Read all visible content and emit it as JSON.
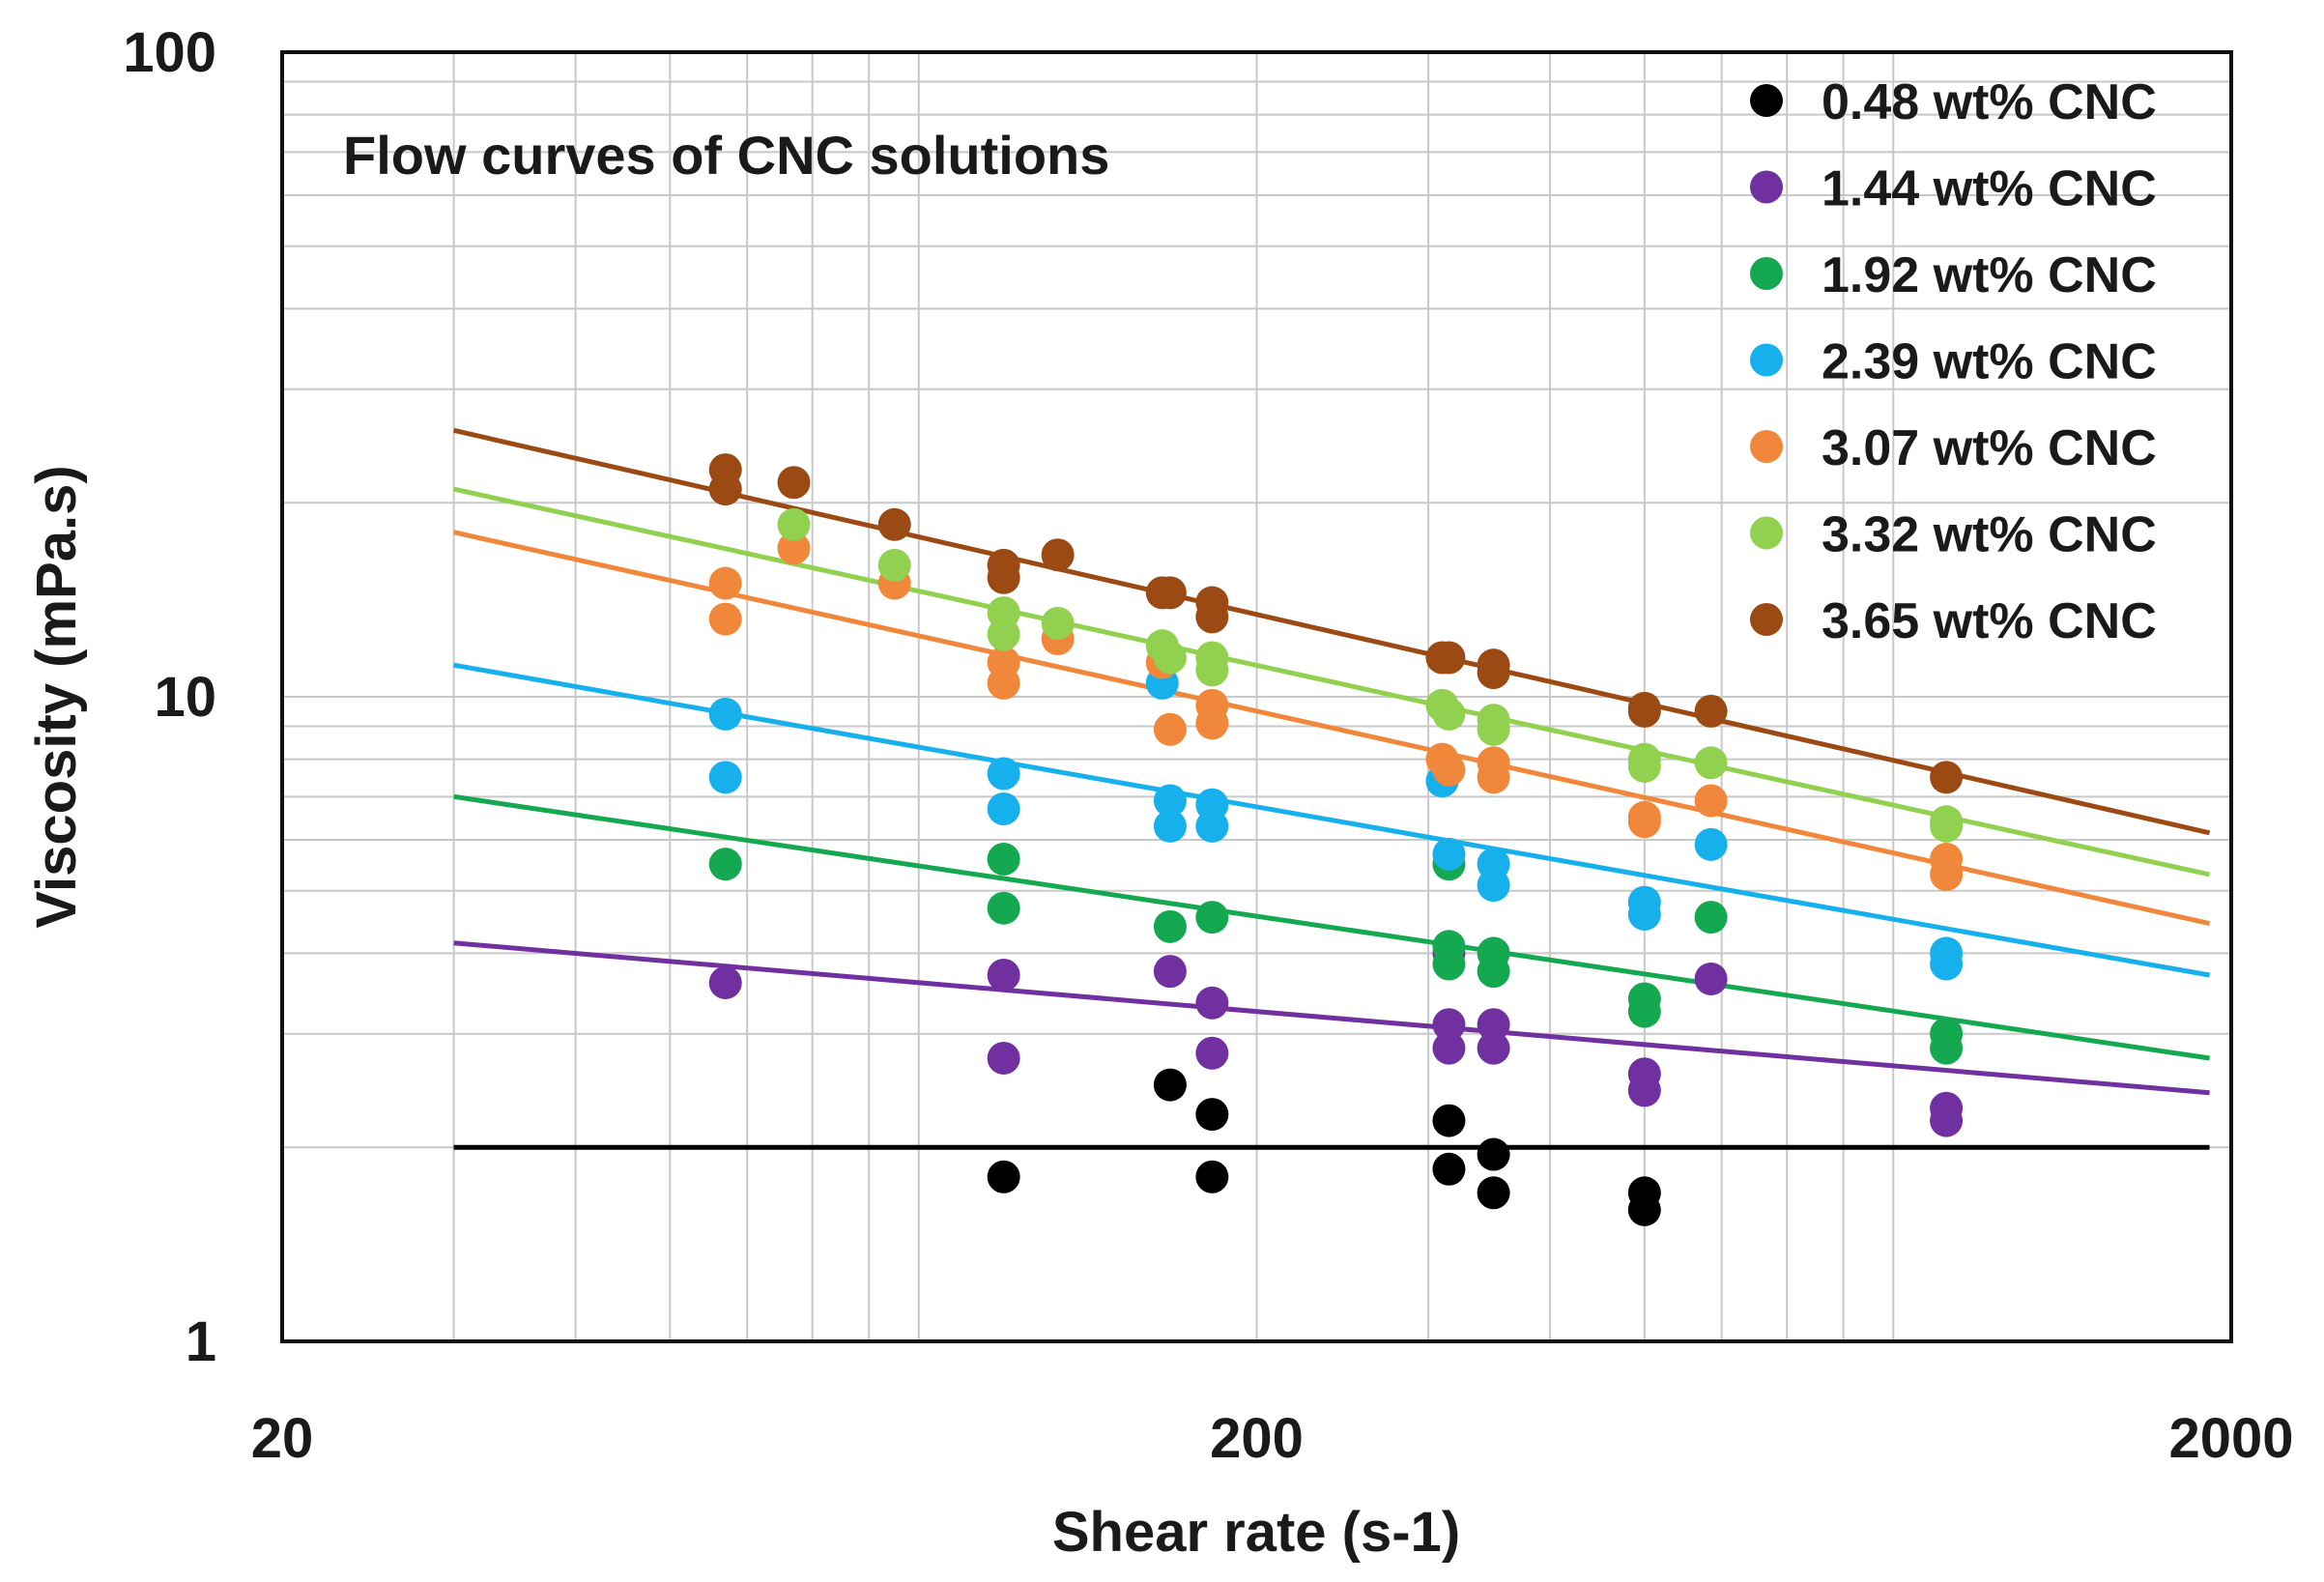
{
  "chart_data": {
    "type": "scatter",
    "title": "Flow curves of CNC solutions",
    "xlabel": "Shear rate (s-1)",
    "ylabel": "Viscosity (mPa.s)",
    "xscale": "log",
    "yscale": "log",
    "xlim": [
      20,
      2000
    ],
    "ylim": [
      1,
      100
    ],
    "xticks": [
      {
        "value": 20,
        "label": "20"
      },
      {
        "value": 200,
        "label": "200"
      },
      {
        "value": 2000,
        "label": "2000"
      }
    ],
    "yticks": [
      {
        "value": 1,
        "label": "1"
      },
      {
        "value": 10,
        "label": "10"
      },
      {
        "value": 100,
        "label": "100"
      }
    ],
    "grid": true,
    "legend_position": "top-right",
    "series": [
      {
        "name": "0.48 wt% CNC",
        "color": "#000000",
        "trendline": {
          "x": [
            30,
            1900
          ],
          "y": [
            2.0,
            2.0
          ]
        },
        "points": [
          [
            110,
            1.8
          ],
          [
            163,
            2.5
          ],
          [
            180,
            2.25
          ],
          [
            180,
            1.8
          ],
          [
            315,
            2.2
          ],
          [
            315,
            1.85
          ],
          [
            350,
            1.95
          ],
          [
            350,
            1.7
          ],
          [
            500,
            1.6
          ],
          [
            500,
            1.7
          ]
        ]
      },
      {
        "name": "1.44 wt% CNC",
        "color": "#7030a0",
        "trendline": {
          "x": [
            30,
            1900
          ],
          "y": [
            4.15,
            2.43
          ]
        },
        "points": [
          [
            57,
            3.6
          ],
          [
            110,
            3.7
          ],
          [
            110,
            2.75
          ],
          [
            163,
            3.75
          ],
          [
            180,
            3.35
          ],
          [
            180,
            2.8
          ],
          [
            315,
            4.0
          ],
          [
            315,
            3.1
          ],
          [
            315,
            2.85
          ],
          [
            350,
            3.1
          ],
          [
            350,
            2.85
          ],
          [
            500,
            2.6
          ],
          [
            500,
            2.45
          ],
          [
            585,
            3.65
          ],
          [
            1020,
            2.3
          ],
          [
            1020,
            2.2
          ]
        ]
      },
      {
        "name": "1.92 wt% CNC",
        "color": "#14a850",
        "trendline": {
          "x": [
            30,
            1900
          ],
          "y": [
            7.0,
            2.75
          ]
        },
        "points": [
          [
            57,
            5.5
          ],
          [
            110,
            5.6
          ],
          [
            110,
            4.7
          ],
          [
            163,
            4.4
          ],
          [
            180,
            4.55
          ],
          [
            315,
            5.5
          ],
          [
            315,
            4.1
          ],
          [
            315,
            3.85
          ],
          [
            350,
            4.0
          ],
          [
            350,
            3.75
          ],
          [
            500,
            3.4
          ],
          [
            500,
            3.25
          ],
          [
            585,
            4.55
          ],
          [
            1020,
            3.0
          ],
          [
            1020,
            2.85
          ]
        ]
      },
      {
        "name": "2.39 wt% CNC",
        "color": "#16b0ec",
        "trendline": {
          "x": [
            30,
            1900
          ],
          "y": [
            11.2,
            3.7
          ]
        },
        "points": [
          [
            57,
            9.4
          ],
          [
            57,
            7.5
          ],
          [
            110,
            7.6
          ],
          [
            110,
            6.7
          ],
          [
            160,
            10.5
          ],
          [
            163,
            6.9
          ],
          [
            163,
            6.3
          ],
          [
            180,
            6.8
          ],
          [
            180,
            6.3
          ],
          [
            310,
            7.4
          ],
          [
            315,
            5.7
          ],
          [
            350,
            5.5
          ],
          [
            350,
            5.1
          ],
          [
            500,
            4.8
          ],
          [
            500,
            4.6
          ],
          [
            585,
            5.9
          ],
          [
            1020,
            4.0
          ],
          [
            1020,
            3.85
          ]
        ]
      },
      {
        "name": "3.07 wt% CNC",
        "color": "#f0873a",
        "trendline": {
          "x": [
            30,
            1900
          ],
          "y": [
            18.0,
            4.45
          ]
        },
        "points": [
          [
            57,
            15.0
          ],
          [
            57,
            13.2
          ],
          [
            67,
            17.0
          ],
          [
            85,
            15.0
          ],
          [
            110,
            11.3
          ],
          [
            110,
            10.5
          ],
          [
            125,
            12.3
          ],
          [
            160,
            11.3
          ],
          [
            163,
            8.9
          ],
          [
            180,
            9.7
          ],
          [
            180,
            9.1
          ],
          [
            310,
            8.0
          ],
          [
            315,
            7.7
          ],
          [
            350,
            7.9
          ],
          [
            350,
            7.5
          ],
          [
            500,
            6.5
          ],
          [
            500,
            6.4
          ],
          [
            585,
            6.9
          ],
          [
            1020,
            5.6
          ],
          [
            1020,
            5.3
          ]
        ]
      },
      {
        "name": "3.32 wt% CNC",
        "color": "#92d050",
        "trendline": {
          "x": [
            30,
            1900
          ],
          "y": [
            21.0,
            5.3
          ]
        },
        "points": [
          [
            67,
            18.5
          ],
          [
            85,
            16.0
          ],
          [
            110,
            13.5
          ],
          [
            110,
            12.5
          ],
          [
            125,
            13.0
          ],
          [
            160,
            12.0
          ],
          [
            163,
            11.5
          ],
          [
            180,
            11.5
          ],
          [
            180,
            11.0
          ],
          [
            310,
            9.7
          ],
          [
            315,
            9.4
          ],
          [
            350,
            9.2
          ],
          [
            350,
            8.9
          ],
          [
            500,
            8.0
          ],
          [
            500,
            7.8
          ],
          [
            585,
            7.9
          ],
          [
            1020,
            6.4
          ],
          [
            1020,
            6.3
          ]
        ]
      },
      {
        "name": "3.65 wt% CNC",
        "color": "#9c4a14",
        "trendline": {
          "x": [
            30,
            1900
          ],
          "y": [
            25.9,
            6.15
          ]
        },
        "points": [
          [
            57,
            22.5
          ],
          [
            57,
            21.0
          ],
          [
            67,
            21.5
          ],
          [
            85,
            18.5
          ],
          [
            110,
            16.0
          ],
          [
            110,
            15.3
          ],
          [
            125,
            16.6
          ],
          [
            160,
            14.5
          ],
          [
            163,
            14.5
          ],
          [
            180,
            14.0
          ],
          [
            180,
            13.3
          ],
          [
            310,
            11.5
          ],
          [
            315,
            11.5
          ],
          [
            350,
            11.2
          ],
          [
            350,
            10.9
          ],
          [
            500,
            9.6
          ],
          [
            500,
            9.5
          ],
          [
            585,
            9.5
          ],
          [
            1020,
            7.5
          ]
        ]
      }
    ]
  }
}
